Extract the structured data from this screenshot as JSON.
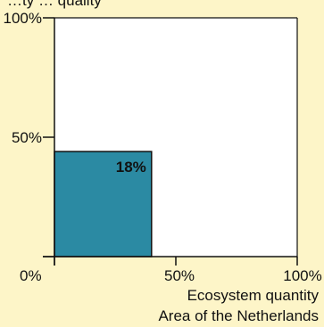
{
  "chart_data": {
    "type": "area",
    "title": "",
    "ylabel": "…ty … quality",
    "xlabel_line1": "Ecosystem quantity",
    "xlabel_line2": "Area of the Netherlands",
    "x_ticks": [
      "0%",
      "50%",
      "100%"
    ],
    "y_ticks": [
      "100%",
      "50%",
      ""
    ],
    "xlim": [
      0,
      100
    ],
    "ylim": [
      0,
      100
    ],
    "block": {
      "x": 40,
      "y": 44,
      "label": "18%",
      "color": "#2b8aa3"
    },
    "grid": false
  },
  "colors": {
    "background": "#fdf5c8",
    "plot_bg": "#ffffff",
    "axis": "#111111"
  }
}
